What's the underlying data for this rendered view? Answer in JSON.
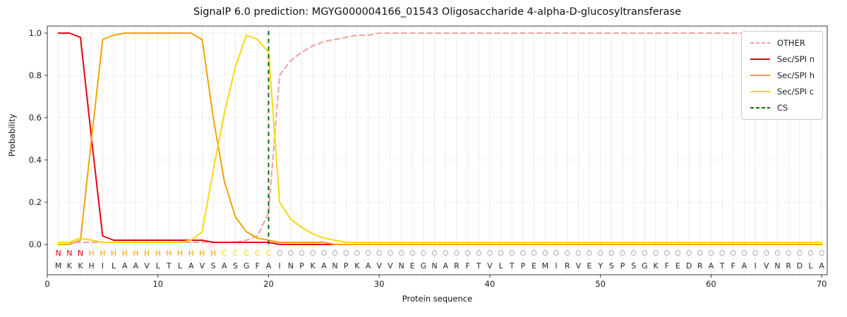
{
  "chart_data": {
    "type": "line",
    "title": "SignalP 6.0 prediction: MGYG000004166_01543 Oligosaccharide 4-alpha-D-glucosyltransferase",
    "xlabel": "Protein sequence",
    "ylabel": "Probability",
    "xlim": [
      0,
      70.5
    ],
    "ylim": [
      -0.14,
      1.03
    ],
    "xticks": [
      0,
      10,
      20,
      30,
      40,
      50,
      60,
      70
    ],
    "yticks": [
      0.0,
      0.2,
      0.4,
      0.6,
      0.8,
      1.0
    ],
    "grid": true,
    "legend_position": "upper right",
    "series": [
      {
        "name": "OTHER",
        "color": "#f1a0a0",
        "dash": [
          7,
          5
        ],
        "values": [
          0.01,
          0.01,
          0.01,
          0.01,
          0.01,
          0.01,
          0.01,
          0.01,
          0.01,
          0.01,
          0.01,
          0.01,
          0.01,
          0.01,
          0.01,
          0.01,
          0.01,
          0.02,
          0.04,
          0.15,
          0.8,
          0.87,
          0.91,
          0.94,
          0.96,
          0.97,
          0.98,
          0.99,
          0.99,
          1.0,
          1.0,
          1.0,
          1.0,
          1.0,
          1.0,
          1.0,
          1.0,
          1.0,
          1.0,
          1.0,
          1.0,
          1.0,
          1.0,
          1.0,
          1.0,
          1.0,
          1.0,
          1.0,
          1.0,
          1.0,
          1.0,
          1.0,
          1.0,
          1.0,
          1.0,
          1.0,
          1.0,
          1.0,
          1.0,
          1.0,
          1.0,
          1.0,
          1.0,
          1.0,
          1.0,
          1.0,
          1.0,
          1.0,
          1.0,
          1.0
        ]
      },
      {
        "name": "Sec/SPI n",
        "color": "#e8000d",
        "dash": null,
        "values": [
          1.0,
          1.0,
          0.98,
          0.5,
          0.04,
          0.02,
          0.02,
          0.02,
          0.02,
          0.02,
          0.02,
          0.02,
          0.02,
          0.02,
          0.01,
          0.01,
          0.01,
          0.01,
          0.01,
          0.01,
          0.0,
          0.0,
          0.0,
          0.0,
          0.0,
          0.0,
          0.0,
          0.0,
          0.0,
          0.0,
          0.0,
          0.0,
          0.0,
          0.0,
          0.0,
          0.0,
          0.0,
          0.0,
          0.0,
          0.0,
          0.0,
          0.0,
          0.0,
          0.0,
          0.0,
          0.0,
          0.0,
          0.0,
          0.0,
          0.0,
          0.0,
          0.0,
          0.0,
          0.0,
          0.0,
          0.0,
          0.0,
          0.0,
          0.0,
          0.0,
          0.0,
          0.0,
          0.0,
          0.0,
          0.0,
          0.0,
          0.0,
          0.0,
          0.0,
          0.0
        ]
      },
      {
        "name": "Sec/SPI h",
        "color": "#f5a200",
        "dash": null,
        "values": [
          0.0,
          0.0,
          0.02,
          0.5,
          0.97,
          0.99,
          1.0,
          1.0,
          1.0,
          1.0,
          1.0,
          1.0,
          1.0,
          0.97,
          0.6,
          0.3,
          0.13,
          0.06,
          0.03,
          0.02,
          0.01,
          0.01,
          0.01,
          0.01,
          0.01,
          0.0,
          0.0,
          0.0,
          0.0,
          0.0,
          0.0,
          0.0,
          0.0,
          0.0,
          0.0,
          0.0,
          0.0,
          0.0,
          0.0,
          0.0,
          0.0,
          0.0,
          0.0,
          0.0,
          0.0,
          0.0,
          0.0,
          0.0,
          0.0,
          0.0,
          0.0,
          0.0,
          0.0,
          0.0,
          0.0,
          0.0,
          0.0,
          0.0,
          0.0,
          0.0,
          0.0,
          0.0,
          0.0,
          0.0,
          0.0,
          0.0,
          0.0,
          0.0,
          0.0,
          0.0
        ]
      },
      {
        "name": "Sec/SPI c",
        "color": "#ffd60a",
        "dash": null,
        "values": [
          0.01,
          0.01,
          0.03,
          0.02,
          0.01,
          0.01,
          0.01,
          0.01,
          0.01,
          0.01,
          0.01,
          0.01,
          0.02,
          0.06,
          0.35,
          0.62,
          0.84,
          0.99,
          0.97,
          0.91,
          0.2,
          0.12,
          0.08,
          0.05,
          0.03,
          0.02,
          0.01,
          0.01,
          0.01,
          0.01,
          0.01,
          0.01,
          0.01,
          0.01,
          0.01,
          0.01,
          0.01,
          0.01,
          0.01,
          0.01,
          0.01,
          0.01,
          0.01,
          0.01,
          0.01,
          0.01,
          0.01,
          0.01,
          0.01,
          0.01,
          0.01,
          0.01,
          0.01,
          0.01,
          0.01,
          0.01,
          0.01,
          0.01,
          0.01,
          0.01,
          0.01,
          0.01,
          0.01,
          0.01,
          0.01,
          0.01,
          0.01,
          0.01,
          0.01,
          0.01
        ]
      }
    ],
    "cs_line": {
      "name": "CS",
      "x": 20,
      "color": "#0a720a",
      "dash": [
        6,
        5
      ]
    },
    "legend": [
      "OTHER",
      "Sec/SPI n",
      "Sec/SPI h",
      "Sec/SPI c",
      "CS"
    ],
    "region_labels": "NNNHHHHHHHHHHHHCCCCCOOOOOOOOOOOOOOOOOOOOOOOOOOOOOOOOOOOOOOOOOOOOOOOOOO",
    "sequence": "MKKHILAAVLTLAVSASGFAINPKANPKAVVNEGNARFTVLTPEMIRVEYSPSGKFEDRATFAIVNRDLA",
    "region_colors": {
      "N": "#e8000d",
      "H": "#f5a200",
      "C": "#ffd60a",
      "O": "#b3b3b3"
    },
    "sequence_color": "#2b2b2b"
  }
}
